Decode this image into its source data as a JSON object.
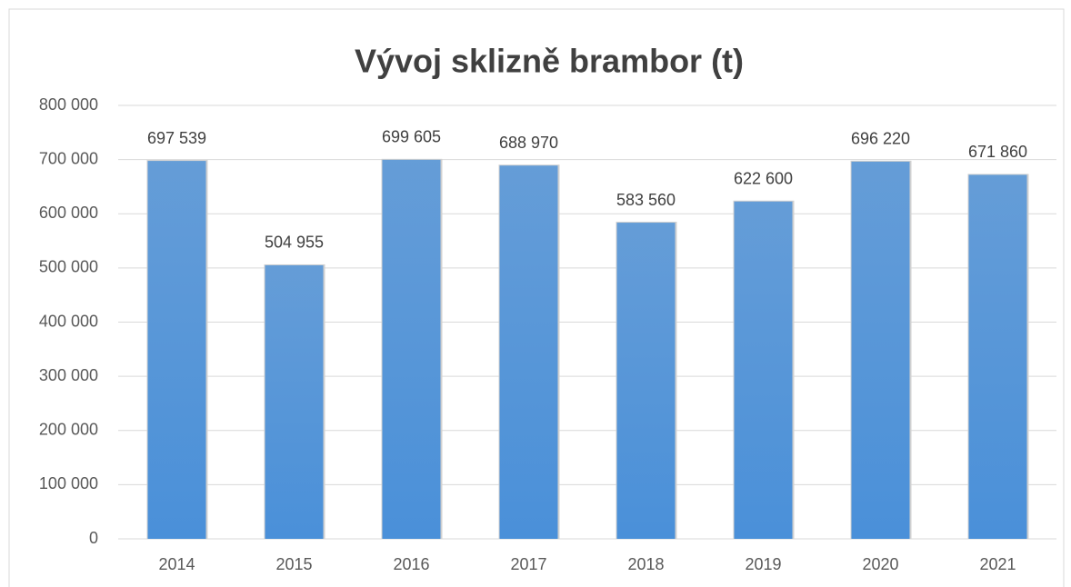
{
  "chart_data": {
    "type": "bar",
    "title": "Vývoj sklizně brambor (t)",
    "categories": [
      "2014",
      "2015",
      "2016",
      "2017",
      "2018",
      "2019",
      "2020",
      "2021"
    ],
    "values": [
      697539,
      504955,
      699605,
      688970,
      583560,
      622600,
      696220,
      671860
    ],
    "value_labels": [
      "697 539",
      "504 955",
      "699 605",
      "688 970",
      "583 560",
      "622 600",
      "696 220",
      "671 860"
    ],
    "color": "#4a90d9",
    "ylim": [
      0,
      800000
    ],
    "yticks": [
      0,
      {
        "value": 100000,
        "label": "100 000"
      },
      {
        "value": 200000,
        "label": "200 000"
      },
      {
        "value": 300000,
        "label": "300 000"
      },
      {
        "value": 400000,
        "label": "400 000"
      },
      {
        "value": 500000,
        "label": "500 000"
      },
      {
        "value": 600000,
        "label": "600 000"
      },
      {
        "value": 700000,
        "label": "700 000"
      },
      {
        "value": 800000,
        "label": "800 000"
      }
    ],
    "grid": true
  }
}
